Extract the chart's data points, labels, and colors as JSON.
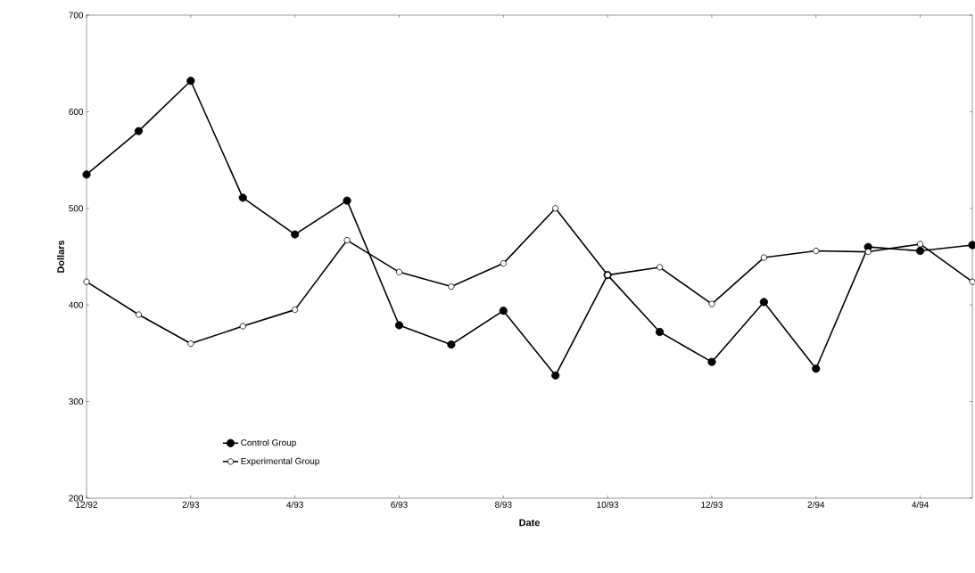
{
  "chart_data": {
    "type": "line",
    "xlabel": "Date",
    "ylabel": "Dollars",
    "categories": [
      "12/92",
      null,
      "2/93",
      null,
      "4/93",
      null,
      "6/93",
      null,
      "8/93",
      null,
      "10/93",
      null,
      "12/93",
      null,
      "2/94",
      null,
      "4/94",
      null
    ],
    "series": [
      {
        "name": "Control Group",
        "color": "#000000",
        "values": [
          535,
          580,
          632,
          511,
          473,
          508,
          379,
          359,
          394,
          327,
          431,
          372,
          341,
          403,
          334,
          460,
          456,
          462
        ]
      },
      {
        "name": "Experimental Group",
        "color": "#000000",
        "values": [
          424,
          390,
          360,
          378,
          395,
          467,
          434,
          419,
          443,
          500,
          431,
          439,
          401,
          449,
          456,
          455,
          463,
          424
        ]
      }
    ],
    "ylim": [
      200,
      700
    ],
    "yticks": [
      200,
      300,
      400,
      500,
      600,
      700
    ],
    "grid": false,
    "legend": "bottom left",
    "marker": "circle",
    "line_style": "solid"
  }
}
